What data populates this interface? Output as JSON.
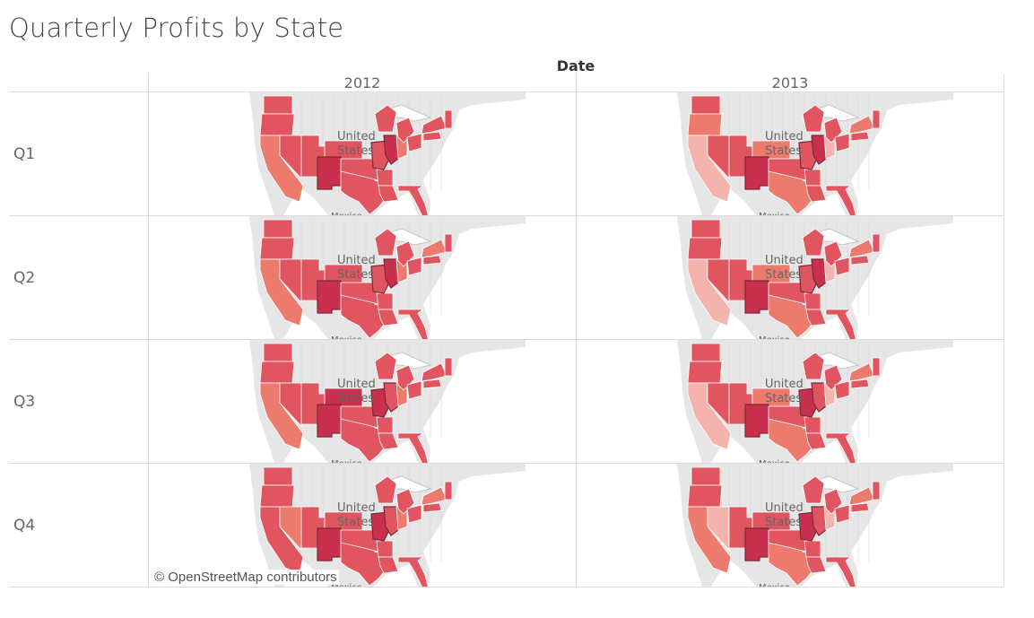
{
  "title": "Quarterly Profits by State",
  "column_dimension": "Date",
  "years": [
    "2012",
    "2013"
  ],
  "quarters": [
    "Q1",
    "Q2",
    "Q3",
    "Q4"
  ],
  "attribution": "© OpenStreetMap contributors",
  "map_labels": {
    "country": "United States",
    "country_line1": "United",
    "country_line2": "States",
    "neighbor": "Mexico"
  },
  "colors": {
    "land": "#e6e6e6",
    "state_border": "#ffffff",
    "highlight_border": "#7a2a3a",
    "profit_low": "#f5b3ae",
    "profit_mid": "#ec7b6e",
    "profit_high": "#e05560",
    "profit_top": "#c8304e"
  },
  "chart_data": {
    "type": "choropleth",
    "measure": "Profit",
    "facets": [
      {
        "year": "2012",
        "quarter": "Q1",
        "states": {
          "WA": 3,
          "OR": 3,
          "CA": 2,
          "NV": 3,
          "UT": 3,
          "CO": 3,
          "NM": 4,
          "TX": 3,
          "OK": 3,
          "AR": 3,
          "LA": 3,
          "MO": 3,
          "IL": 4,
          "IN": 2,
          "WI": 3,
          "MI": 3,
          "OH": 3,
          "NY": 3,
          "PA": 3,
          "MA": 3,
          "FL": 3
        }
      },
      {
        "year": "2012",
        "quarter": "Q2",
        "states": {
          "WA": 3,
          "OR": 3,
          "CA": 2,
          "NV": 3,
          "UT": 3,
          "CO": 3,
          "NM": 4,
          "TX": 3,
          "OK": 3,
          "AR": 3,
          "LA": 3,
          "MO": 3,
          "IL": 4,
          "IN": 2,
          "WI": 3,
          "MI": 3,
          "OH": 3,
          "NY": 2,
          "PA": 3,
          "MA": 3,
          "FL": 3
        }
      },
      {
        "year": "2012",
        "quarter": "Q3",
        "states": {
          "WA": 3,
          "OR": 3,
          "CA": 2,
          "NV": 3,
          "UT": 3,
          "CO": 4,
          "NM": 4,
          "TX": 3,
          "OK": 3,
          "AR": 3,
          "LA": 3,
          "MO": 4,
          "IL": 3,
          "IN": 2,
          "WI": 3,
          "MI": 3,
          "OH": 3,
          "NY": 3,
          "PA": 3,
          "MA": 3,
          "FL": 3
        }
      },
      {
        "year": "2012",
        "quarter": "Q4",
        "states": {
          "WA": 3,
          "OR": 3,
          "CA": 3,
          "NV": 2,
          "UT": 3,
          "CO": 3,
          "NM": 4,
          "TX": 3,
          "OK": 3,
          "AR": 3,
          "LA": 3,
          "MO": 4,
          "IL": 3,
          "IN": 2,
          "WI": 3,
          "MI": 3,
          "OH": 3,
          "NY": 2,
          "PA": 3,
          "MA": 3,
          "FL": 3
        }
      },
      {
        "year": "2013",
        "quarter": "Q1",
        "states": {
          "WA": 3,
          "OR": 2,
          "CA": 1,
          "NV": 3,
          "UT": 3,
          "CO": 2,
          "NM": 4,
          "TX": 2,
          "OK": 3,
          "AR": 3,
          "LA": 3,
          "MO": 3,
          "IL": 4,
          "IN": 1,
          "WI": 3,
          "MI": 3,
          "OH": 3,
          "NY": 2,
          "PA": 3,
          "MA": 3,
          "FL": 3
        }
      },
      {
        "year": "2013",
        "quarter": "Q2",
        "states": {
          "WA": 3,
          "OR": 3,
          "CA": 1,
          "NV": 3,
          "UT": 3,
          "CO": 2,
          "NM": 4,
          "TX": 2,
          "OK": 3,
          "AR": 3,
          "LA": 3,
          "MO": 3,
          "IL": 4,
          "IN": 1,
          "WI": 3,
          "MI": 3,
          "OH": 3,
          "NY": 2,
          "PA": 3,
          "MA": 3,
          "FL": 3
        }
      },
      {
        "year": "2013",
        "quarter": "Q3",
        "states": {
          "WA": 3,
          "OR": 3,
          "CA": 1,
          "NV": 3,
          "UT": 3,
          "CO": 2,
          "NM": 4,
          "TX": 2,
          "OK": 3,
          "AR": 3,
          "LA": 3,
          "MO": 4,
          "IL": 3,
          "IN": 1,
          "WI": 3,
          "MI": 3,
          "OH": 3,
          "NY": 2,
          "PA": 3,
          "MA": 3,
          "FL": 3
        }
      },
      {
        "year": "2013",
        "quarter": "Q4",
        "states": {
          "WA": 3,
          "OR": 3,
          "CA": 2,
          "NV": 1,
          "UT": 3,
          "CO": 3,
          "NM": 4,
          "TX": 2,
          "OK": 3,
          "AR": 3,
          "LA": 3,
          "MO": 4,
          "IL": 3,
          "IN": 1,
          "WI": 3,
          "MI": 3,
          "OH": 3,
          "NY": 2,
          "PA": 3,
          "MA": 3,
          "FL": 3
        }
      }
    ]
  }
}
